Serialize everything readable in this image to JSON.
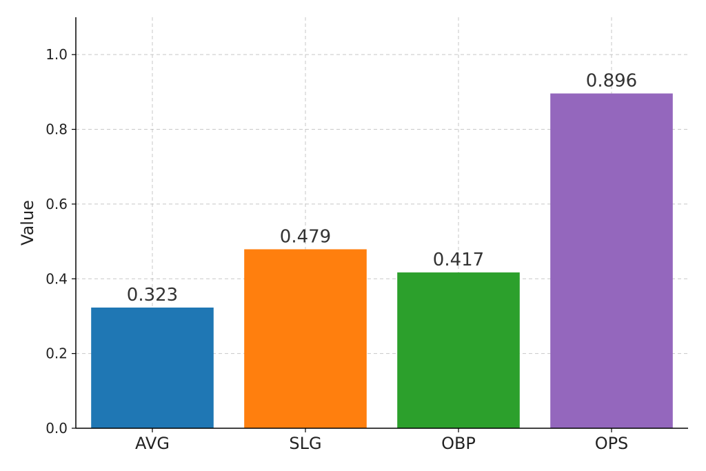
{
  "chart_data": {
    "type": "bar",
    "title": "",
    "xlabel": "",
    "ylabel": "Value",
    "categories": [
      "AVG",
      "SLG",
      "OBP",
      "OPS"
    ],
    "values": [
      0.323,
      0.479,
      0.417,
      0.896
    ],
    "data_labels": [
      "0.323",
      "0.479",
      "0.417",
      "0.896"
    ],
    "colors": [
      "#1f77b4",
      "#ff7f0e",
      "#2ca02c",
      "#9467bd"
    ],
    "ylim": [
      0,
      1.1
    ],
    "yticks": [
      0.0,
      0.2,
      0.4,
      0.6,
      0.8,
      1.0
    ],
    "ytick_labels": [
      "0.0",
      "0.2",
      "0.4",
      "0.6",
      "0.8",
      "1.0"
    ],
    "grid": true
  }
}
